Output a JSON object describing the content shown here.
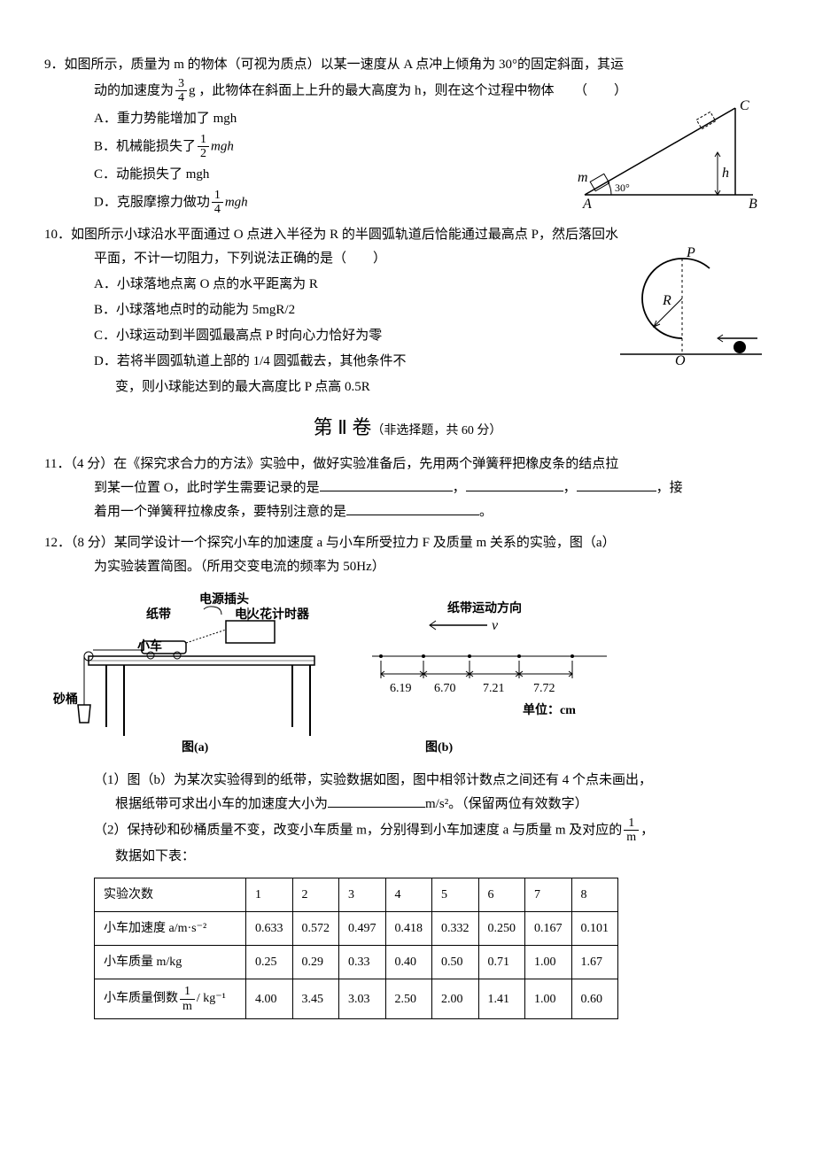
{
  "q9": {
    "num": "9．",
    "text_a": "如图所示，质量为 m 的物体（可视为质点）以某一速度从 A 点冲上倾角为 30°的固定斜面，其运",
    "text_b_pre": "动的加速度为",
    "frac34": {
      "num": "3",
      "den": "4"
    },
    "text_b_mid": "g ，此物体在斜面上上升的最大高度为 h，则在这个过程中物体　　（　　）",
    "optA": "A．重力势能增加了 mgh",
    "optB_pre": "B．机械能损失了",
    "frac12": {
      "num": "1",
      "den": "2"
    },
    "optB_post": "mgh",
    "optC": "C．动能损失了 mgh",
    "optD_pre": "D．克服摩擦力做功",
    "frac14": {
      "num": "1",
      "den": "4"
    },
    "optD_post": "mgh",
    "fig": {
      "A": "A",
      "B": "B",
      "C": "C",
      "m": "m",
      "h": "h",
      "angle": "30°"
    }
  },
  "q10": {
    "num": "10．",
    "text_a": "如图所示小球沿水平面通过 O 点进入半径为 R 的半圆弧轨道后恰能通过最高点 P，然后落回水",
    "text_b": "平面，不计一切阻力，下列说法正确的是（　　）",
    "optA": "A．小球落地点离 O 点的水平距离为 R",
    "optB": "B．小球落地点时的动能为 5mgR/2",
    "optC": "C．小球运动到半圆弧最高点 P 时向心力恰好为零",
    "optD1": "D．若将半圆弧轨道上部的 1/4 圆弧截去，其他条件不",
    "optD2": "变，则小球能达到的最大高度比 P 点高 0.5R",
    "fig": {
      "P": "P",
      "R": "R",
      "O": "O"
    }
  },
  "section2": {
    "title": "第 Ⅱ 卷",
    "sub": "（非选择题，共 60 分）"
  },
  "q11": {
    "num": "11．",
    "text_a": "（4 分）在《探究求合力的方法》实验中，做好实验准备后，先用两个弹簧秤把橡皮条的结点拉",
    "text_b_pre": "到某一位置 O，此时学生需要记录的是",
    "text_b_mid1": "，",
    "text_b_mid2": "，",
    "text_b_post": "，接",
    "text_c_pre": "着用一个弹簧秤拉橡皮条，要特别注意的是",
    "text_c_post": "。"
  },
  "q12": {
    "num": "12．",
    "text_a": "（8 分）某同学设计一个探究小车的加速度 a 与小车所受拉力 F 及质量 m 关系的实验，图（a）",
    "text_b": "为实验装置简图。（所用交变电流的频率为 50Hz）",
    "fig_labels": {
      "plug": "电源插头",
      "tape": "纸带",
      "timer": "电火花计时器",
      "cart": "小车",
      "bucket": "砂桶",
      "figA": "图(a)",
      "figB": "图(b)",
      "dir": "纸带运动方向",
      "v": "v",
      "unit": "单位：cm",
      "seg": [
        "6.19",
        "6.70",
        "7.21",
        "7.72"
      ]
    },
    "p1_pre": "（1）图（b）为某次实验得到的纸带，实验数据如图，图中相邻计数点之间还有 4 个点未画出，",
    "p1_line2_pre": "根据纸带可求出小车的加速度大小为",
    "p1_line2_post": "m/s²。（保留两位有效数字）",
    "p2_pre": "（2）保持砂和砂桶质量不变，改变小车质量 m，分别得到小车加速度 a 与质量 m 及对应的",
    "p2_mid": "，",
    "p2_line2": "数据如下表：",
    "table": {
      "headers": [
        "实验次数",
        "1",
        "2",
        "3",
        "4",
        "5",
        "6",
        "7",
        "8"
      ],
      "rows": [
        {
          "label": "小车加速度 a/m·s⁻²",
          "cells": [
            "0.633",
            "0.572",
            "0.497",
            "0.418",
            "0.332",
            "0.250",
            "0.167",
            "0.101"
          ]
        },
        {
          "label": "小车质量 m/kg",
          "cells": [
            "0.25",
            "0.29",
            "0.33",
            "0.40",
            "0.50",
            "0.71",
            "1.00",
            "1.67"
          ]
        },
        {
          "label_pre": "小车质量倒数",
          "label_post": "/ kg⁻¹",
          "frac": {
            "num": "1",
            "den": "m"
          },
          "cells": [
            "4.00",
            "3.45",
            "3.03",
            "2.50",
            "2.00",
            "1.41",
            "1.00",
            "0.60"
          ]
        }
      ]
    },
    "frac_1m": {
      "num": "1",
      "den": "m"
    }
  }
}
